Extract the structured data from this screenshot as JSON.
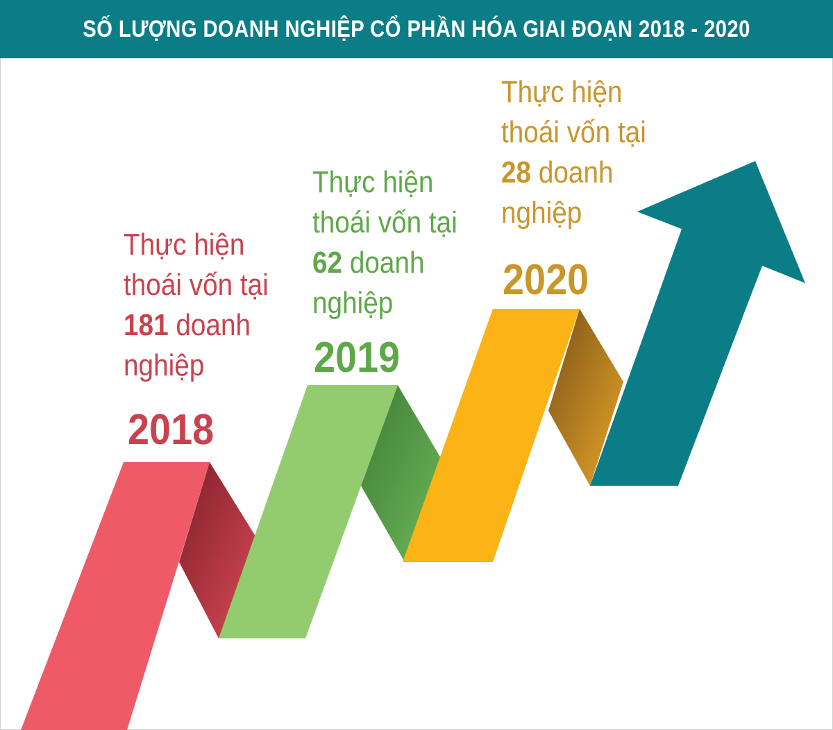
{
  "title": "SỐ LƯỢNG DOANH NGHIỆP CỔ PHẦN HÓA GIAI ĐOẠN 2018 - 2020",
  "colors": {
    "header_bg": "#0b7d86",
    "arrow": "#0b7d86",
    "y2018": "#ef5a67",
    "y2019": "#92cc6e",
    "y2020": "#fbb316",
    "text2018": "#c9434f",
    "text2019": "#5fa84a",
    "text2020": "#c9962a"
  },
  "items": [
    {
      "year": "2018",
      "line1": "Thực hiện",
      "line2": "thoái vốn tại",
      "count": "181",
      "count_suffix": " doanh",
      "line4": "nghiệp"
    },
    {
      "year": "2019",
      "line1": "Thực hiện",
      "line2": "thoái vốn tại",
      "count": "62",
      "count_suffix": " doanh",
      "line4": "nghiệp"
    },
    {
      "year": "2020",
      "line1": "Thực hiện",
      "line2": "thoái vốn tại",
      "count": "28",
      "count_suffix": " doanh",
      "line4": "nghiệp"
    }
  ],
  "icons": [
    "up-arrow-icon"
  ]
}
